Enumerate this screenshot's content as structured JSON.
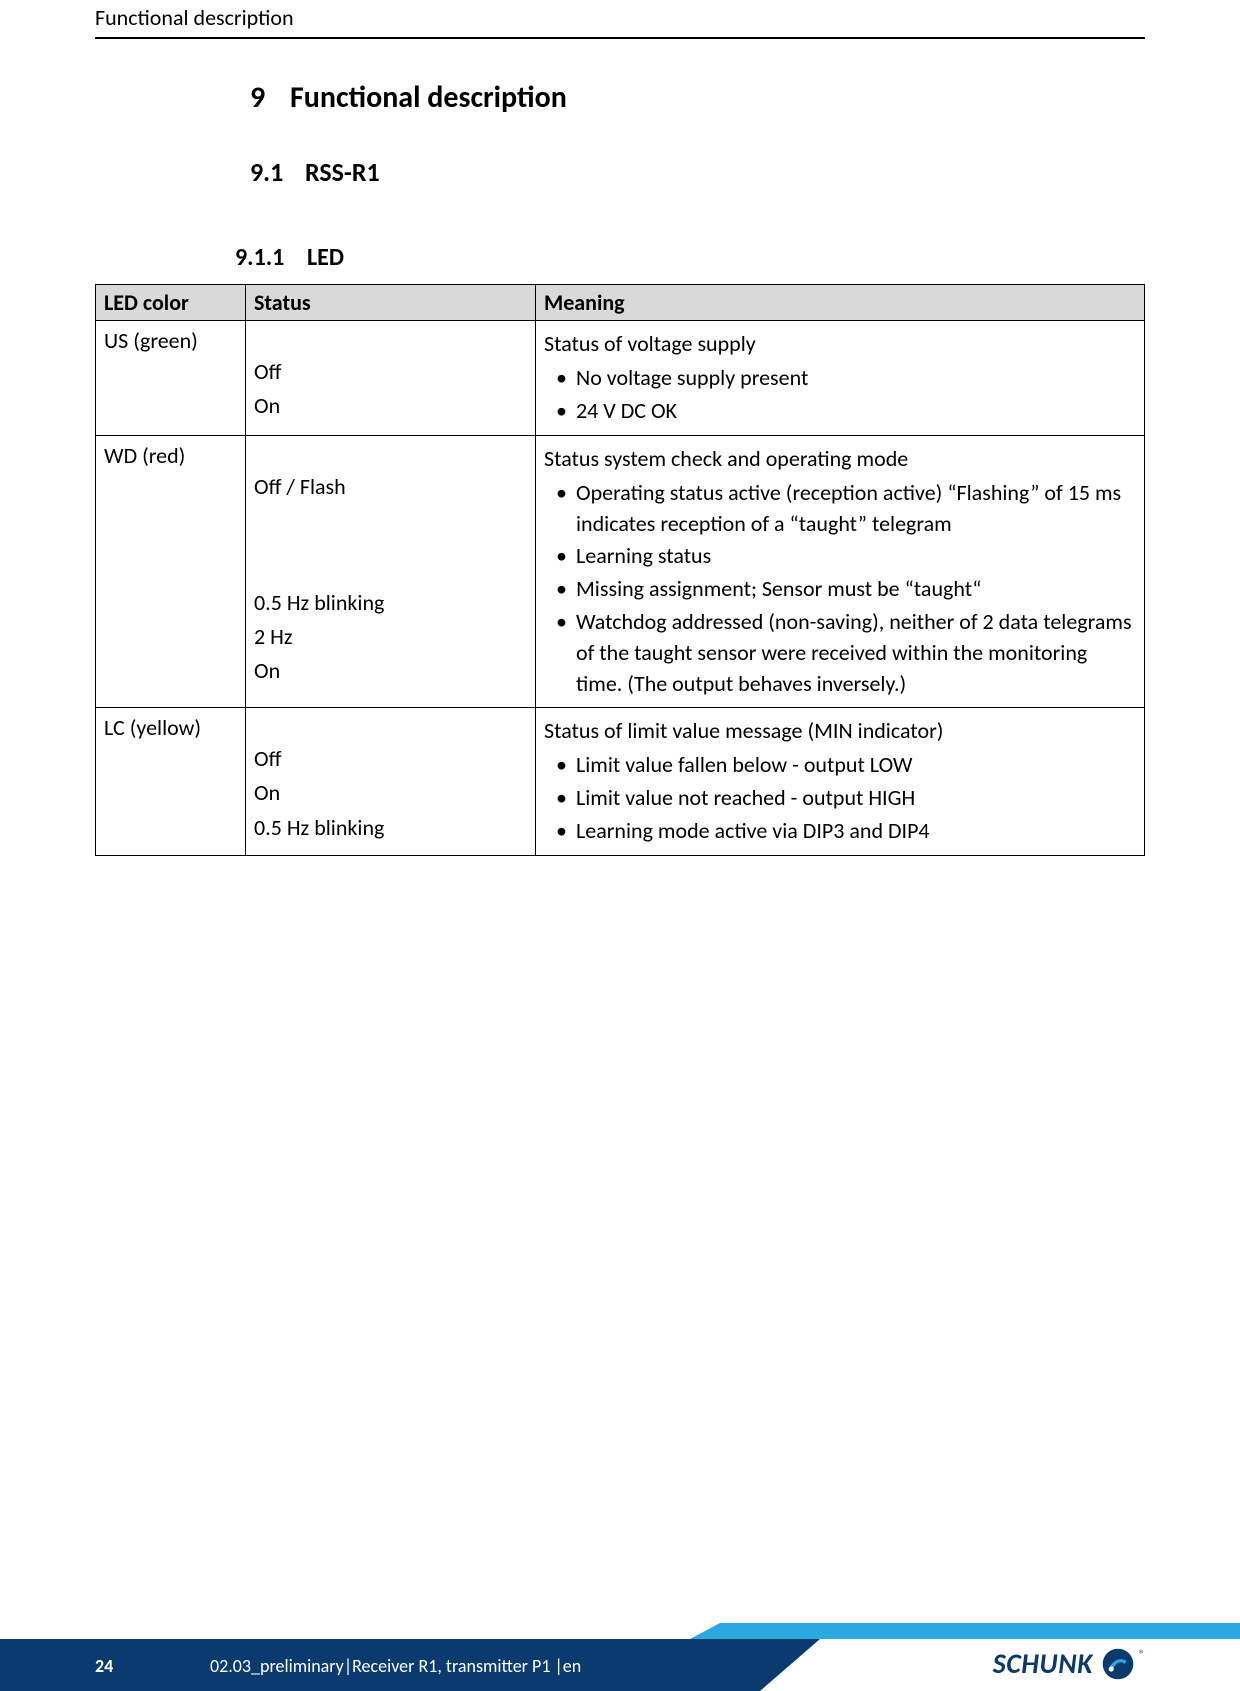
{
  "page": {
    "running_header": "Functional description",
    "page_number": "24",
    "footer_text": "02.03_preliminary|Receiver R1, transmitter P1 |en",
    "logo_text": "SCHUNK",
    "logo_registered": "®"
  },
  "colors": {
    "footer_dark": "#0b3a6f",
    "footer_light": "#2aa8e0",
    "table_header_bg": "#d9d9d9",
    "logo_blue": "#0b3a6f",
    "logo_cyan": "#2aa8e0"
  },
  "headings": {
    "h1": {
      "num": "9",
      "text": "Functional description"
    },
    "h2": {
      "num": "9.1",
      "text": "RSS-R1"
    },
    "h3": {
      "num": "9.1.1",
      "text": "LED"
    }
  },
  "table": {
    "columns": [
      "LED color",
      "Status",
      "Meaning"
    ],
    "rows": [
      {
        "led": "US (green)",
        "status": [
          "Off",
          "On"
        ],
        "meaning_heading": "Status of voltage supply",
        "meaning_items": [
          "No voltage supply present",
          "24 V DC OK"
        ]
      },
      {
        "led": "WD (red)",
        "status": [
          "Off / Flash",
          "0.5 Hz blinking",
          "2 Hz",
          "On"
        ],
        "status_gap_after_first": true,
        "meaning_heading": "Status system check and operating mode",
        "meaning_items": [
          "Operating status active (reception active) “Flashing” of 15 ms indicates reception of a “taught” telegram",
          "Learning status",
          "Missing assignment; Sensor must be “taught“",
          "Watchdog addressed (non-saving), neither of 2 data telegrams of the taught sensor were received within the monitoring time. (The output behaves inversely.)"
        ]
      },
      {
        "led": "LC (yellow)",
        "status": [
          "Off",
          "On",
          "0.5 Hz blinking"
        ],
        "meaning_heading": "Status of limit value message (MIN indicator)",
        "meaning_items": [
          "Limit value fallen below - output LOW",
          "Limit value not reached - output HIGH",
          "Learning mode active via DIP3 and DIP4"
        ]
      }
    ]
  }
}
